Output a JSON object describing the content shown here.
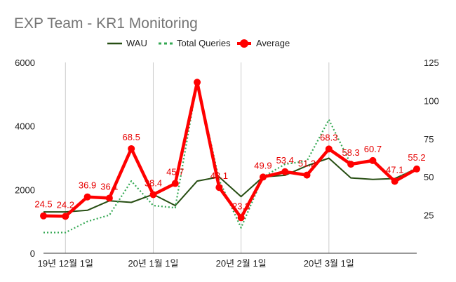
{
  "chart_data": {
    "type": "line",
    "title": "EXP Team - KR1 Monitoring",
    "legend": {
      "placement": "top-center"
    },
    "grid": {
      "vertical": true,
      "horizontal": false
    },
    "x_tick_labels": [
      {
        "index": 1,
        "label": "19년 12월 1일"
      },
      {
        "index": 5,
        "label": "20년 1월 1일"
      },
      {
        "index": 9,
        "label": "20년 2월 1일"
      },
      {
        "index": 13,
        "label": "20년 3월 1일"
      }
    ],
    "y_left": {
      "range": [
        0,
        6000
      ],
      "ticks": [
        "0",
        "2000",
        "4000",
        "6000"
      ]
    },
    "y_right": {
      "range": [
        0,
        125
      ],
      "ticks": [
        "25",
        "50",
        "75",
        "100",
        "125"
      ]
    },
    "series": [
      {
        "name": "WAU",
        "axis": "left",
        "style": "solid",
        "color": "#274e13",
        "values": [
          1300,
          1300,
          1350,
          1650,
          1600,
          1850,
          1500,
          2270,
          2400,
          1780,
          2400,
          2450,
          2750,
          2990,
          2370,
          2320,
          2350,
          2660
        ]
      },
      {
        "name": "Total Queries",
        "axis": "left",
        "style": "dotted",
        "color": "#34a853",
        "values": [
          650,
          650,
          1000,
          1200,
          2270,
          1500,
          1430,
          5400,
          2300,
          800,
          2400,
          2800,
          2900,
          4200,
          2800,
          2900,
          2300,
          2700
        ]
      },
      {
        "name": "Average",
        "axis": "right",
        "style": "thick-marker",
        "color": "#ff0000",
        "values": [
          24.5,
          24.2,
          36.9,
          36.1,
          68.5,
          38.4,
          45.7,
          112,
          43.1,
          23.3,
          49.9,
          53.4,
          51.2,
          68.3,
          58.3,
          60.7,
          47.1,
          55.2
        ],
        "labels": [
          "24.5",
          "24.2",
          "36.9",
          "36.1",
          "68.5",
          "38.4",
          "45.7",
          "",
          "43.1",
          "23.3",
          "49.9",
          "53.4",
          "51.2",
          "68.3",
          "58.3",
          "60.7",
          "47.1",
          "55.2"
        ]
      }
    ]
  }
}
